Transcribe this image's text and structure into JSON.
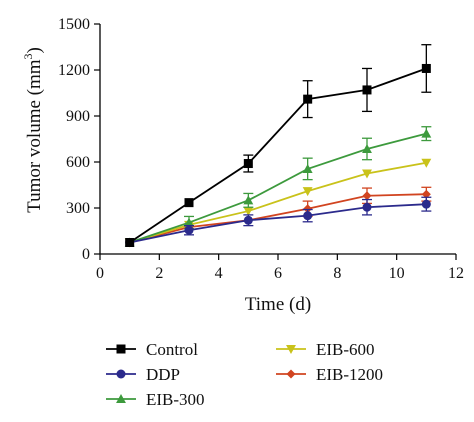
{
  "chart_data": {
    "type": "line",
    "xlabel": "Time (d)",
    "ylabel": {
      "main": "Tumor volume (mm",
      "sup": "3",
      "tail": ")"
    },
    "xlim": [
      0,
      12
    ],
    "ylim": [
      0,
      1500
    ],
    "xticks": [
      "0",
      "2",
      "4",
      "6",
      "8",
      "10",
      "12"
    ],
    "yticks": [
      "0",
      "300",
      "600",
      "900",
      "1200",
      "1500"
    ],
    "grid": false,
    "legend_position": "bottom",
    "x": [
      1,
      3,
      5,
      7,
      9,
      11
    ],
    "series": [
      {
        "name": "Control",
        "color": "#000000",
        "marker": "square",
        "values": [
          75,
          335,
          590,
          1010,
          1070,
          1210
        ],
        "errors": [
          0,
          0,
          55,
          120,
          140,
          155
        ]
      },
      {
        "name": "DDP",
        "color": "#2b2a8c",
        "marker": "circle",
        "values": [
          75,
          155,
          220,
          250,
          305,
          325
        ],
        "errors": [
          0,
          30,
          35,
          40,
          50,
          45
        ]
      },
      {
        "name": "EIB-300",
        "color": "#3d9a3d",
        "marker": "triangle-up",
        "values": [
          75,
          205,
          350,
          555,
          685,
          785
        ],
        "errors": [
          0,
          40,
          45,
          70,
          70,
          45
        ]
      },
      {
        "name": "EIB-600",
        "color": "#c9c21a",
        "marker": "triangle-down",
        "values": [
          75,
          190,
          280,
          410,
          525,
          595
        ],
        "errors": [
          0,
          0,
          0,
          0,
          0,
          0
        ]
      },
      {
        "name": "EIB-1200",
        "color": "#d14420",
        "marker": "diamond",
        "values": [
          75,
          175,
          220,
          295,
          380,
          390
        ],
        "errors": [
          0,
          0,
          0,
          50,
          50,
          45
        ]
      }
    ]
  }
}
